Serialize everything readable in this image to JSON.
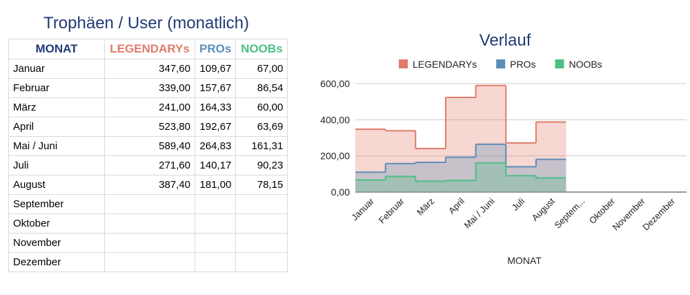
{
  "table": {
    "title": "Trophäen / User (monatlich)",
    "header": [
      {
        "text": "MONAT",
        "color": "#1f3b73"
      },
      {
        "text": "LEGENDARYs",
        "color": "#e07b6a"
      },
      {
        "text": "PROs",
        "color": "#5b8db8"
      },
      {
        "text": "NOOBs",
        "color": "#4cbf86"
      }
    ],
    "rows": [
      [
        "Januar",
        "347,60",
        "109,67",
        "67,00"
      ],
      [
        "Februar",
        "339,00",
        "157,67",
        "86,54"
      ],
      [
        "März",
        "241,00",
        "164,33",
        "60,00"
      ],
      [
        "April",
        "523,80",
        "192,67",
        "63,69"
      ],
      [
        "Mai / Juni",
        "589,40",
        "264,83",
        "161,31"
      ],
      [
        "Juli",
        "271,60",
        "140,17",
        "90,23"
      ],
      [
        "August",
        "387,40",
        "181,00",
        "78,15"
      ],
      [
        "September"
      ],
      [
        "Oktober"
      ],
      [
        "November"
      ],
      [
        "Dezember"
      ]
    ]
  },
  "chart_data": {
    "type": "stepped-area",
    "title": "Verlauf",
    "x_label": "MONAT",
    "categories": [
      "Januar",
      "Februar",
      "März",
      "April",
      "Mai / Juni",
      "Juli",
      "August",
      "Septem...",
      "Oktober",
      "November",
      "Dezember"
    ],
    "series": [
      {
        "name": "LEGENDARYs",
        "color": "#e07b6a",
        "values": [
          347.6,
          339.0,
          241.0,
          523.8,
          589.4,
          271.6,
          387.4,
          null,
          null,
          null,
          null
        ]
      },
      {
        "name": "PROs",
        "color": "#5b8db8",
        "values": [
          109.67,
          157.67,
          164.33,
          192.67,
          264.83,
          140.17,
          181.0,
          null,
          null,
          null,
          null
        ]
      },
      {
        "name": "NOOBs",
        "color": "#4cbf86",
        "values": [
          67.0,
          86.54,
          60.0,
          63.69,
          161.31,
          90.23,
          78.15,
          null,
          null,
          null,
          null
        ]
      }
    ],
    "ylim": [
      0,
      600
    ],
    "yticks": [
      {
        "value": 0,
        "label": "0,00"
      },
      {
        "value": 200,
        "label": "200,00"
      },
      {
        "value": 400,
        "label": "400,00"
      },
      {
        "value": 600,
        "label": "600,00"
      }
    ],
    "grid": true,
    "legend": "top"
  }
}
